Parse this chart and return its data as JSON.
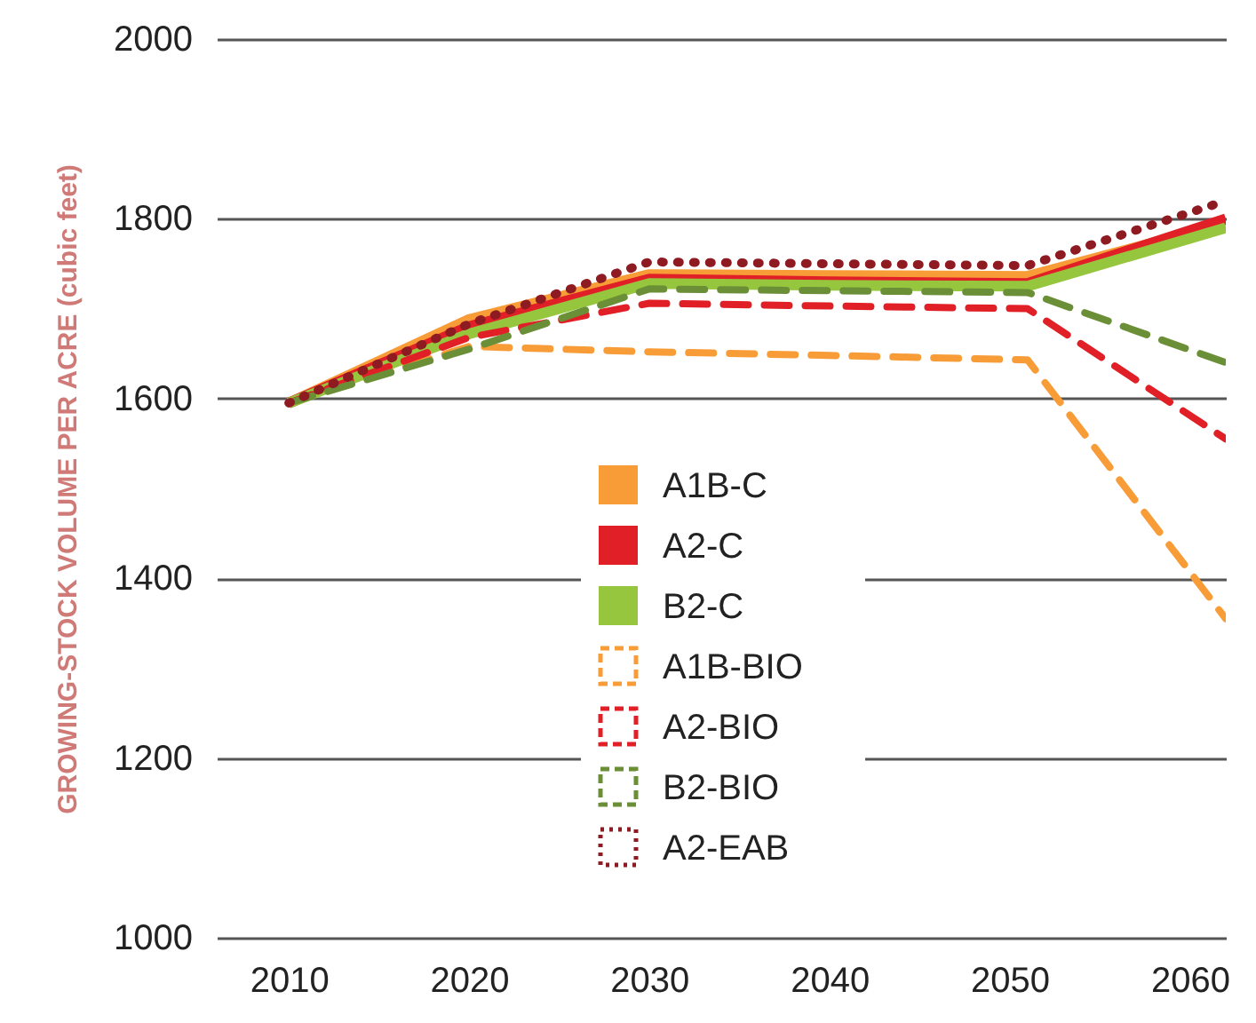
{
  "chart_data": {
    "type": "line",
    "ylabel": "GROWING-STOCK VOLUME PER ACRE (cubic feet)",
    "x": [
      2010,
      2020,
      2030,
      2040,
      2051,
      2062
    ],
    "xlim": [
      2006,
      2062
    ],
    "xticks": [
      2010,
      2020,
      2030,
      2040,
      2050,
      2060
    ],
    "ylim": [
      1000,
      2000
    ],
    "yticks": [
      1000,
      1200,
      1400,
      1600,
      1800,
      2000
    ],
    "grid": "y",
    "legend": "bottom",
    "series": [
      {
        "name": "A1B-C",
        "color": "#f89c38",
        "line_style": "solid",
        "values": [
          1595,
          1688,
          1738,
          1737,
          1736,
          1795
        ]
      },
      {
        "name": "A2-C",
        "color": "#e01f26",
        "line_style": "solid",
        "values": [
          1595,
          1680,
          1733,
          1730,
          1728,
          1800
        ]
      },
      {
        "name": "B2-C",
        "color": "#96c63e",
        "line_style": "solid",
        "values": [
          1595,
          1672,
          1728,
          1726,
          1725,
          1790
        ]
      },
      {
        "name": "A1B-BIO",
        "color": "#f89c38",
        "line_style": "dashed",
        "values": [
          1595,
          1658,
          1652,
          1648,
          1643,
          1355
        ]
      },
      {
        "name": "A2-BIO",
        "color": "#e01f26",
        "line_style": "dashed",
        "values": [
          1595,
          1668,
          1706,
          1703,
          1700,
          1555
        ]
      },
      {
        "name": "B2-BIO",
        "color": "#6a8f36",
        "line_style": "dashed",
        "values": [
          1595,
          1655,
          1722,
          1720,
          1718,
          1640
        ]
      },
      {
        "name": "A2-EAB",
        "color": "#8e1b22",
        "line_style": "dotted",
        "values": [
          1595,
          1683,
          1752,
          1750,
          1748,
          1820
        ]
      }
    ]
  }
}
